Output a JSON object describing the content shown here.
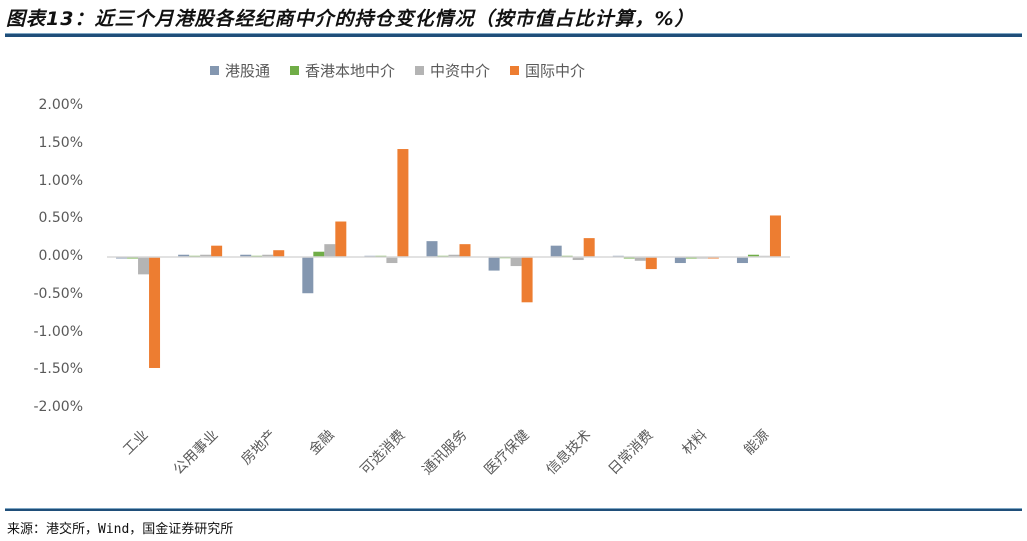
{
  "title": "图表13：近三个月港股各经纪商中介的持仓变化情况（按市值占比计算，%）",
  "source": "来源：港交所，Wind，国金证券研究所",
  "legend": [
    {
      "label": "港股通",
      "color": "#8497b0"
    },
    {
      "label": "香港本地中介",
      "color": "#70ad47"
    },
    {
      "label": "中资中介",
      "color": "#b4b4b4"
    },
    {
      "label": "国际中介",
      "color": "#ed7d31"
    }
  ],
  "yticks": [
    "2.00%",
    "1.50%",
    "1.00%",
    "0.50%",
    "0.00%",
    "-0.50%",
    "-1.00%",
    "-1.50%",
    "-2.00%"
  ],
  "chart_data": {
    "type": "bar",
    "title": "近三个月港股各经纪商中介的持仓变化情况（按市值占比计算，%）",
    "xlabel": "",
    "ylabel": "",
    "ylim": [
      -2.0,
      2.0
    ],
    "y_unit": "%",
    "legend_position": "top",
    "grid": false,
    "categories": [
      "工业",
      "公用事业",
      "房地产",
      "金融",
      "可选消费",
      "通讯服务",
      "医疗保健",
      "信息技术",
      "日常消费",
      "材料",
      "能源"
    ],
    "series": [
      {
        "name": "港股通",
        "color": "#8497b0",
        "values": [
          -0.02,
          0.03,
          0.03,
          -0.48,
          0.01,
          0.21,
          -0.18,
          0.15,
          0.01,
          -0.08,
          -0.08
        ]
      },
      {
        "name": "香港本地中介",
        "color": "#70ad47",
        "values": [
          -0.02,
          0.01,
          0.01,
          0.07,
          0.01,
          0.0,
          -0.01,
          0.0,
          -0.02,
          -0.02,
          0.03
        ]
      },
      {
        "name": "中资中介",
        "color": "#b4b4b4",
        "values": [
          -0.23,
          0.03,
          0.03,
          0.17,
          -0.08,
          0.03,
          -0.12,
          -0.04,
          -0.05,
          -0.02,
          0.01
        ]
      },
      {
        "name": "国际中介",
        "color": "#ed7d31",
        "values": [
          -1.47,
          0.15,
          0.09,
          0.47,
          1.43,
          0.17,
          -0.6,
          0.25,
          -0.16,
          -0.02,
          0.55
        ]
      }
    ]
  }
}
